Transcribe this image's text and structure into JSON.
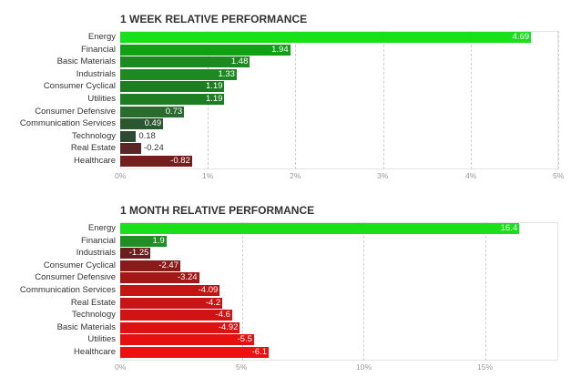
{
  "chart_data": [
    {
      "type": "bar",
      "orientation": "horizontal",
      "title": "1 WEEK RELATIVE PERFORMANCE",
      "categories": [
        "Energy",
        "Financial",
        "Basic Materials",
        "Industrials",
        "Consumer Cyclical",
        "Utilities",
        "Consumer Defensive",
        "Communication Services",
        "Technology",
        "Real Estate",
        "Healthcare"
      ],
      "values": [
        4.69,
        1.94,
        1.48,
        1.33,
        1.19,
        1.19,
        0.73,
        0.49,
        0.18,
        -0.24,
        -0.82
      ],
      "value_labels": [
        "4.69",
        "1.94",
        "1.48",
        "1.33",
        "1.19",
        "1.19",
        "0.73",
        "0.49",
        "0.18",
        "-0.24",
        "-0.82"
      ],
      "colors": [
        "#19e01b",
        "#10a014",
        "#1c8a20",
        "#1c8a20",
        "#1e7d22",
        "#1e7d22",
        "#2a6b2e",
        "#2c5830",
        "#2e4a33",
        "#5a2727",
        "#761e1e"
      ],
      "xlim": [
        0,
        5
      ],
      "xticks": [
        0,
        1,
        2,
        3,
        4,
        5
      ],
      "xtick_labels": [
        "0%",
        "1%",
        "2%",
        "3%",
        "4%",
        "5%"
      ],
      "grid": true
    },
    {
      "type": "bar",
      "orientation": "horizontal",
      "title": "1 MONTH RELATIVE PERFORMANCE",
      "categories": [
        "Energy",
        "Financial",
        "Industrials",
        "Consumer Cyclical",
        "Consumer Defensive",
        "Communication Services",
        "Real Estate",
        "Technology",
        "Basic Materials",
        "Utilities",
        "Healthcare"
      ],
      "values": [
        16.4,
        1.9,
        -1.25,
        -2.47,
        -3.24,
        -4.09,
        -4.2,
        -4.6,
        -4.92,
        -5.5,
        -6.1
      ],
      "value_labels": [
        "16.4",
        "1.9",
        "-1.25",
        "-2.47",
        "-3.24",
        "-4.09",
        "-4.2",
        "-4.6",
        "-4.92",
        "-5.5",
        "-6.1"
      ],
      "colors": [
        "#19e01b",
        "#1f8f24",
        "#6b1e1e",
        "#8a1b1b",
        "#a31717",
        "#c41414",
        "#c81414",
        "#d21313",
        "#dc1111",
        "#e61010",
        "#ee0f0f"
      ],
      "xlim": [
        0,
        18
      ],
      "xticks": [
        0,
        5,
        10,
        15
      ],
      "xtick_labels": [
        "0%",
        "5%",
        "10%",
        "15%"
      ],
      "grid": true
    }
  ]
}
